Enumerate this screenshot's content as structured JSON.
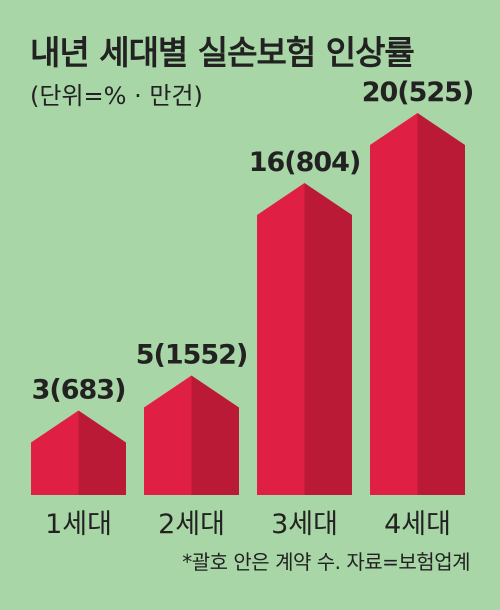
{
  "title": "내년 세대별 실손보험 인상률",
  "subtitle": "(단위=% · 만건)",
  "source_note": "*괄호 안은 계약 수. 자료=보험업계",
  "colors": {
    "background": "#a9d6a6",
    "bar_front": "#e01f45",
    "bar_side": "#bb1a37",
    "bar_top": "#d4173b"
  },
  "chart_data": {
    "type": "bar",
    "title": "내년 세대별 실손보험 인상률",
    "subtitle": "(단위=% · 만건)",
    "categories": [
      "1세대",
      "2세대",
      "3세대",
      "4세대"
    ],
    "values": [
      3,
      5,
      16,
      20
    ],
    "contracts": [
      683,
      1552,
      804,
      525
    ],
    "labels": [
      "3(683)",
      "5(1552)",
      "16(804)",
      "20(525)"
    ],
    "legend": "none",
    "grid": false
  }
}
